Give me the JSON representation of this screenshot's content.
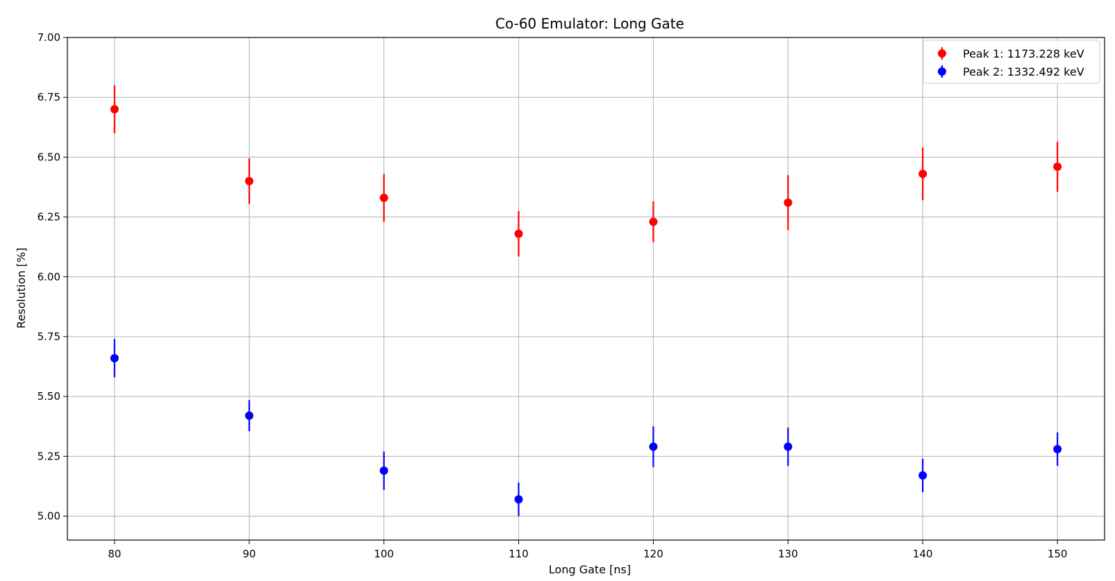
{
  "chart_data": {
    "type": "scatter",
    "title": "Co-60 Emulator: Long Gate",
    "xlabel": "Long Gate [ns]",
    "ylabel": "Resolution [%]",
    "xlim": [
      76.5,
      153.5
    ],
    "ylim": [
      4.9,
      7.0
    ],
    "xticks": [
      80,
      90,
      100,
      110,
      120,
      130,
      140,
      150
    ],
    "yticks": [
      5.0,
      5.25,
      5.5,
      5.75,
      6.0,
      6.25,
      6.5,
      6.75,
      7.0
    ],
    "ytick_labels": [
      "5.00",
      "5.25",
      "5.50",
      "5.75",
      "6.00",
      "6.25",
      "6.50",
      "6.75",
      "7.00"
    ],
    "grid": true,
    "legend_position": "top-right",
    "series": [
      {
        "name": "Peak 1: 1173.228 keV",
        "color": "#ff0000",
        "x": [
          80,
          90,
          100,
          110,
          120,
          130,
          140,
          150
        ],
        "y": [
          6.7,
          6.4,
          6.33,
          6.18,
          6.23,
          6.31,
          6.43,
          6.46
        ],
        "yerr": [
          0.1,
          0.095,
          0.1,
          0.095,
          0.085,
          0.115,
          0.11,
          0.105
        ]
      },
      {
        "name": "Peak 2: 1332.492 keV",
        "color": "#0000ff",
        "x": [
          80,
          90,
          100,
          110,
          120,
          130,
          140,
          150
        ],
        "y": [
          5.66,
          5.42,
          5.19,
          5.07,
          5.29,
          5.29,
          5.17,
          5.28
        ],
        "yerr": [
          0.08,
          0.065,
          0.08,
          0.07,
          0.085,
          0.08,
          0.07,
          0.07
        ]
      }
    ]
  }
}
